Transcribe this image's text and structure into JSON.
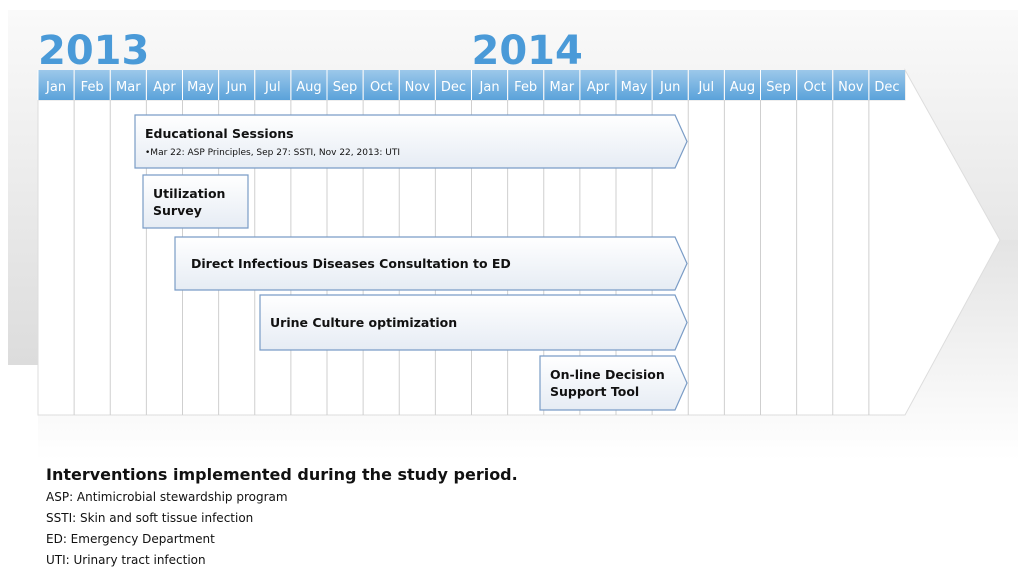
{
  "years": [
    "2013",
    "2014"
  ],
  "months": [
    "Jan",
    "Feb",
    "Mar",
    "Apr",
    "May",
    "Jun",
    "Jul",
    "Aug",
    "Sep",
    "Oct",
    "Nov",
    "Dec",
    "Jan",
    "Feb",
    "Mar",
    "Apr",
    "May",
    "Jun",
    "Jul",
    "Aug",
    "Sep",
    "Oct",
    "Nov",
    "Dec"
  ],
  "bars": [
    {
      "title": "Educational Sessions",
      "subtitle": "•Mar 22: ASP Principles, Sep 27: SSTI, Nov 22, 2013: UTI"
    },
    {
      "title": "Utilization Survey"
    },
    {
      "title": "Direct Infectious Diseases Consultation to ED"
    },
    {
      "title": "Urine Culture optimization"
    },
    {
      "title": "On-line Decision Support Tool"
    }
  ],
  "caption": {
    "title": "Interventions implemented during the study period.",
    "lines": [
      "ASP: Antimicrobial stewardship program",
      "SSTI: Skin and soft tissue infection",
      "ED: Emergency Department",
      "UTI: Urinary tract infection"
    ]
  }
}
